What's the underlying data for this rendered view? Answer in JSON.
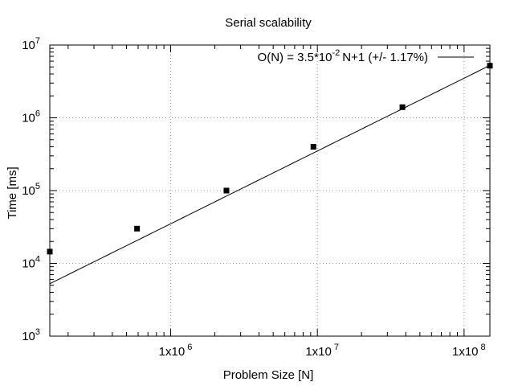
{
  "chart_data": {
    "type": "scatter",
    "title": "Serial scalability",
    "xlabel": "Problem Size [N]",
    "ylabel": "Time [ms]",
    "x_scale": "log",
    "y_scale": "log",
    "xlim": [
      150000,
      150000000
    ],
    "ylim": [
      1000,
      10000000
    ],
    "grid": true,
    "legend_position": "top-right",
    "x_ticks": [
      {
        "value": 1000000,
        "base": "1x10",
        "exp": "6"
      },
      {
        "value": 10000000,
        "base": "1x10",
        "exp": "7"
      },
      {
        "value": 100000000,
        "base": "1x10",
        "exp": "8"
      }
    ],
    "y_ticks": [
      {
        "value": 1000,
        "base": "10",
        "exp": "3"
      },
      {
        "value": 10000,
        "base": "10",
        "exp": "4"
      },
      {
        "value": 100000,
        "base": "10",
        "exp": "5"
      },
      {
        "value": 1000000,
        "base": "10",
        "exp": "6"
      },
      {
        "value": 10000000,
        "base": "10",
        "exp": "7"
      }
    ],
    "series": [
      {
        "type": "scatter",
        "x": [
          150000,
          590000,
          2400000,
          9400000,
          38000000,
          150000000
        ],
        "y": [
          14500,
          30000,
          100000,
          400000,
          1400000,
          5200000
        ]
      },
      {
        "type": "line",
        "name_parts": {
          "pre": "O(N) = 3.5*10",
          "exp": "-2",
          "post": "N+1 (+/- 1.17%)"
        },
        "coef": 0.035,
        "intercept": 1,
        "x": [
          150000,
          150000000
        ],
        "y": [
          5251,
          5250001
        ]
      }
    ]
  }
}
